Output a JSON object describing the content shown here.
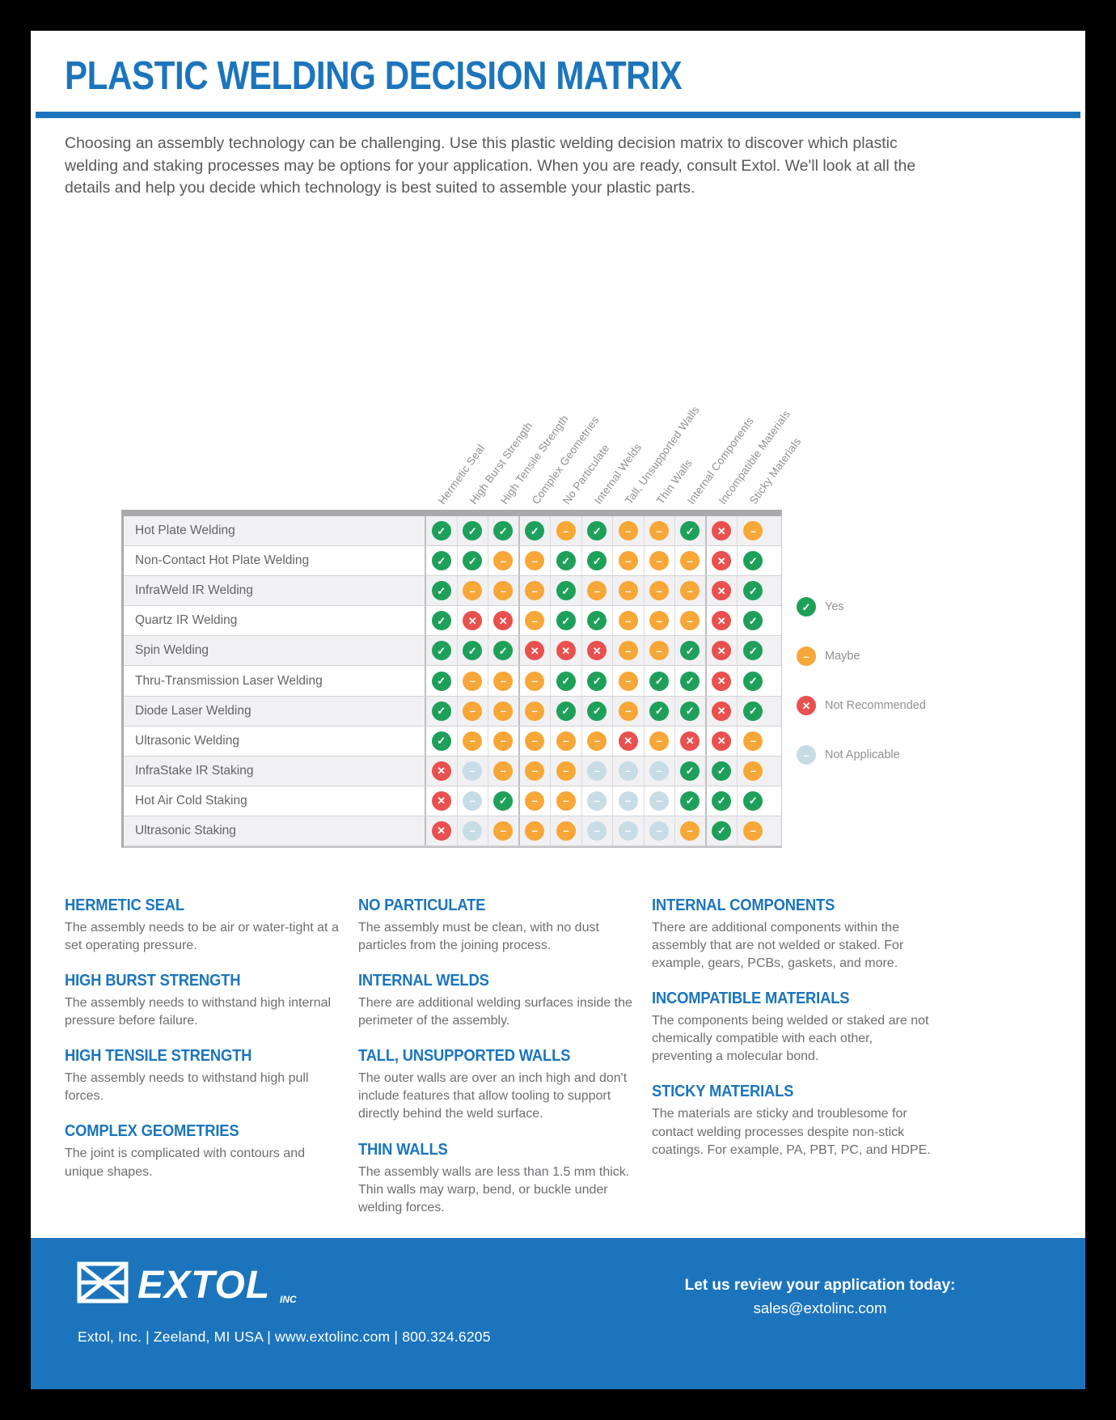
{
  "page": {
    "title": "PLASTIC WELDING DECISION MATRIX",
    "intro": "Choosing an assembly technology can be challenging. Use this plastic welding decision matrix to discover which plastic welding and staking processes may be options for your application. When you are ready, consult Extol. We'll look at all the details and help you decide which technology is best suited to assemble your plastic parts."
  },
  "colors": {
    "brand_blue": "#1C75BC",
    "yes_green": "#1FA05A",
    "maybe_orange": "#F7A738",
    "not_recommended_red": "#E9504E",
    "not_applicable_blue": "#C8DCE6"
  },
  "matrix": {
    "legend": [
      {
        "key": "yes",
        "label": "Yes",
        "color": "#1FA05A",
        "symbol": "✓"
      },
      {
        "key": "maybe",
        "label": "Maybe",
        "color": "#F7A738",
        "symbol": "–"
      },
      {
        "key": "no",
        "label": "Not Recommended",
        "color": "#E9504E",
        "symbol": "✕"
      },
      {
        "key": "na",
        "label": "Not Applicable",
        "color": "#C8DCE6",
        "symbol": "–"
      }
    ],
    "columns": [
      "Hermetic Seal",
      "High Burst Strength",
      "High Tensile Strength",
      "Complex Geometries",
      "No Particulate",
      "Internal Welds",
      "Tall, Unsupported Walls",
      "Thin Walls",
      "Internal Components",
      "Incompatible Materials",
      "Sticky Materials"
    ],
    "rows": [
      {
        "process": "Hot Plate Welding",
        "ratings": [
          "yes",
          "yes",
          "yes",
          "yes",
          "maybe",
          "yes",
          "maybe",
          "maybe",
          "yes",
          "no",
          "maybe"
        ]
      },
      {
        "process": "Non-Contact Hot Plate Welding",
        "ratings": [
          "yes",
          "yes",
          "maybe",
          "maybe",
          "yes",
          "yes",
          "maybe",
          "maybe",
          "maybe",
          "no",
          "yes"
        ]
      },
      {
        "process": "InfraWeld IR Welding",
        "ratings": [
          "yes",
          "maybe",
          "maybe",
          "maybe",
          "yes",
          "maybe",
          "maybe",
          "maybe",
          "maybe",
          "no",
          "yes"
        ]
      },
      {
        "process": "Quartz IR Welding",
        "ratings": [
          "yes",
          "no",
          "no",
          "maybe",
          "yes",
          "yes",
          "maybe",
          "maybe",
          "maybe",
          "no",
          "yes"
        ]
      },
      {
        "process": "Spin Welding",
        "ratings": [
          "yes",
          "yes",
          "yes",
          "no",
          "no",
          "no",
          "maybe",
          "maybe",
          "yes",
          "no",
          "yes"
        ]
      },
      {
        "process": "Thru-Transmission Laser Welding",
        "ratings": [
          "yes",
          "maybe",
          "maybe",
          "maybe",
          "yes",
          "yes",
          "maybe",
          "yes",
          "yes",
          "no",
          "yes"
        ]
      },
      {
        "process": "Diode Laser Welding",
        "ratings": [
          "yes",
          "maybe",
          "maybe",
          "maybe",
          "yes",
          "yes",
          "maybe",
          "yes",
          "yes",
          "no",
          "yes"
        ]
      },
      {
        "process": "Ultrasonic Welding",
        "ratings": [
          "yes",
          "maybe",
          "maybe",
          "maybe",
          "maybe",
          "maybe",
          "no",
          "maybe",
          "no",
          "no",
          "maybe"
        ]
      },
      {
        "process": "InfraStake IR Staking",
        "ratings": [
          "no",
          "na",
          "maybe",
          "maybe",
          "maybe",
          "na",
          "na",
          "na",
          "yes",
          "yes",
          "maybe"
        ]
      },
      {
        "process": "Hot Air Cold Staking",
        "ratings": [
          "no",
          "na",
          "yes",
          "maybe",
          "maybe",
          "na",
          "na",
          "na",
          "yes",
          "yes",
          "yes"
        ]
      },
      {
        "process": "Ultrasonic Staking",
        "ratings": [
          "no",
          "na",
          "maybe",
          "maybe",
          "maybe",
          "na",
          "na",
          "na",
          "maybe",
          "yes",
          "maybe"
        ]
      }
    ]
  },
  "definitions": {
    "columns": [
      [
        {
          "heading": "HERMETIC SEAL",
          "body": "The assembly needs to be air or water-tight at a set operating pressure."
        },
        {
          "heading": "HIGH BURST STRENGTH",
          "body": "The assembly needs to withstand high internal pressure before failure."
        },
        {
          "heading": "HIGH TENSILE STRENGTH",
          "body": "The assembly needs to withstand high pull forces."
        },
        {
          "heading": "COMPLEX GEOMETRIES",
          "body": "The joint is complicated with contours and unique shapes."
        }
      ],
      [
        {
          "heading": "NO PARTICULATE",
          "body": "The assembly must be clean, with no dust particles from the joining process."
        },
        {
          "heading": "INTERNAL WELDS",
          "body": "There are additional welding surfaces inside the perimeter of the assembly."
        },
        {
          "heading": "TALL, UNSUPPORTED WALLS",
          "body": "The outer walls are over an inch high and don't include features that allow tooling to support directly behind the weld surface."
        },
        {
          "heading": "THIN WALLS",
          "body": "The assembly walls are less than 1.5 mm thick. Thin walls may warp, bend, or buckle under welding forces."
        }
      ],
      [
        {
          "heading": "INTERNAL COMPONENTS",
          "body": "There are additional components within the assembly that are not welded or staked. For example, gears, PCBs, gaskets, and more."
        },
        {
          "heading": "INCOMPATIBLE MATERIALS",
          "body": "The components being welded or staked are not chemically compatible with each other, preventing a molecular bond."
        },
        {
          "heading": "STICKY MATERIALS",
          "body": "The materials are sticky and troublesome for contact welding processes despite non-stick coatings. For example, PA, PBT, PC, and HDPE."
        }
      ]
    ]
  },
  "footer": {
    "logo_text": "EXTOL",
    "logo_suffix": "INC",
    "address": "Extol, Inc.  |  Zeeland, MI USA  |  www.extolinc.com  |  800.324.6205",
    "cta_line1": "Let us review your application today:",
    "cta_line2": "sales@extolinc.com"
  }
}
